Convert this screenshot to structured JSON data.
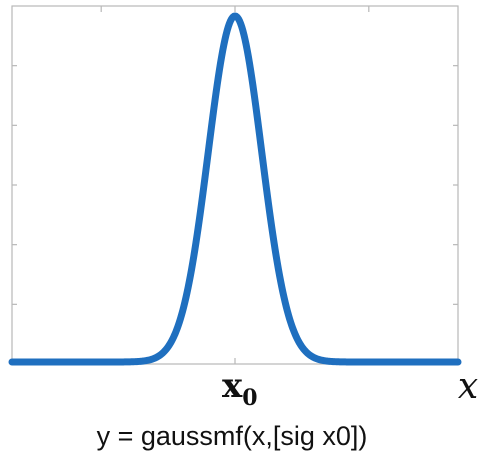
{
  "chart_data": {
    "type": "line",
    "title": "",
    "caption": "y = gaussmf(x,[sig x0])",
    "xlabel": "x",
    "ylabel": "",
    "x_tick_labels": [
      {
        "base": "x",
        "sub": "0"
      }
    ],
    "xlim": [
      -5,
      5
    ],
    "ylim": [
      0,
      1
    ],
    "grid": false,
    "series": [
      {
        "function": "gaussmf",
        "params": {
          "sigma": 0.6,
          "x0": 0
        },
        "color": "#1f6fbf"
      }
    ]
  }
}
